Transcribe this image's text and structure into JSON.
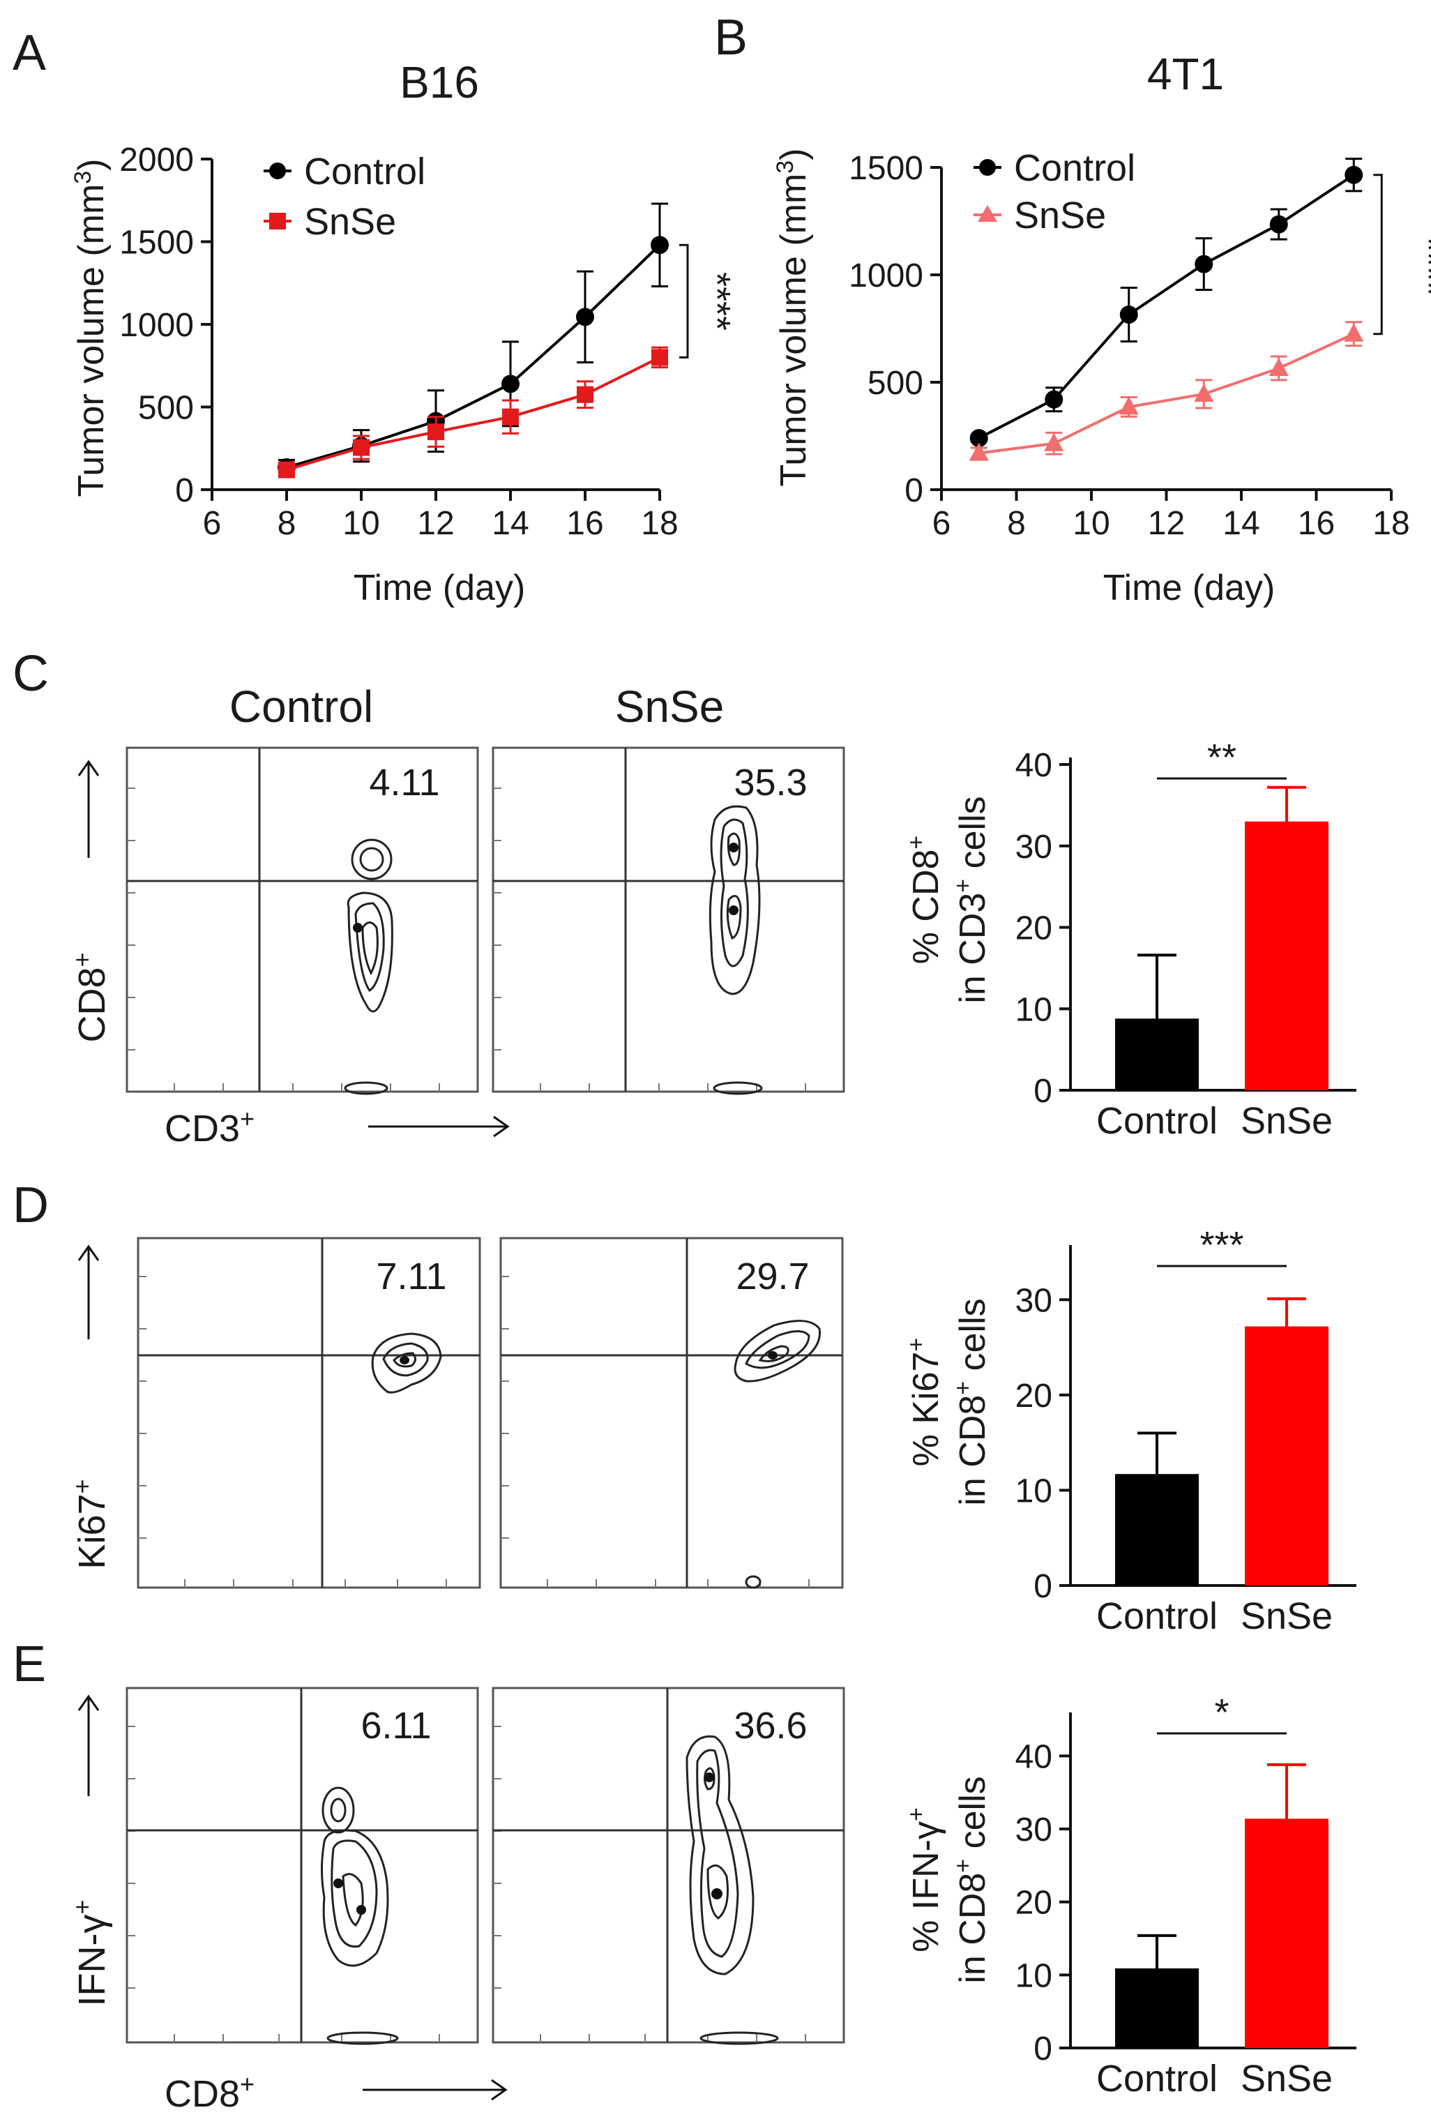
{
  "panels": {
    "A": {
      "letter": "A",
      "chart_data": {
        "type": "line",
        "title": "B16",
        "xlabel": "Time (day)",
        "ylabel": "Tumor volume (mm",
        "ylabel_sup": "3",
        "ylabel_close": ")",
        "xlim": [
          6,
          18
        ],
        "ylim": [
          0,
          2000
        ],
        "xticks": [
          6,
          8,
          10,
          12,
          14,
          16,
          18
        ],
        "yticks": [
          0,
          500,
          1000,
          1500,
          2000
        ],
        "series": [
          {
            "name": "Control",
            "color": "#000000",
            "marker": "circle",
            "x": [
              8,
              10,
              12,
              14,
              16,
              18
            ],
            "y": [
              135,
              265,
              415,
              640,
              1045,
              1480
            ],
            "err": [
              45,
              95,
              185,
              255,
              275,
              250
            ]
          },
          {
            "name": "SnSe",
            "color": "#e31a1c",
            "marker": "square",
            "x": [
              8,
              10,
              12,
              14,
              16,
              18
            ],
            "y": [
              120,
              255,
              350,
              440,
              575,
              800
            ],
            "err": [
              40,
              70,
              90,
              100,
              80,
              60
            ]
          }
        ],
        "significance": "****"
      }
    },
    "B": {
      "letter": "B",
      "chart_data": {
        "type": "line",
        "title": "4T1",
        "xlabel": "Time (day)",
        "ylabel": "Tumor volume (mm",
        "ylabel_sup": "3",
        "ylabel_close": ")",
        "xlim": [
          6,
          18
        ],
        "ylim": [
          0,
          1500
        ],
        "xticks": [
          6,
          8,
          10,
          12,
          14,
          16,
          18
        ],
        "yticks": [
          0,
          500,
          1000,
          1500
        ],
        "series": [
          {
            "name": "Control",
            "color": "#000000",
            "marker": "circle",
            "x": [
              7,
              9,
              11,
              13,
              15,
              17
            ],
            "y": [
              240,
              420,
              815,
              1050,
              1235,
              1465
            ],
            "err": [
              15,
              55,
              125,
              120,
              70,
              75
            ]
          },
          {
            "name": "SnSe",
            "color": "#f26d6d",
            "marker": "triangle",
            "x": [
              7,
              9,
              11,
              13,
              15,
              17
            ],
            "y": [
              170,
              215,
              385,
              445,
              565,
              725
            ],
            "err": [
              25,
              50,
              45,
              65,
              55,
              55
            ]
          }
        ],
        "significance": "****"
      }
    },
    "C": {
      "letter": "C",
      "flow": {
        "col_labels": [
          "Control",
          "SnSe"
        ],
        "ylabel": "CD8",
        "xlabel": "CD3",
        "sup": "+",
        "quadrant_values": [
          "4.11",
          "35.3"
        ]
      },
      "chart_data": {
        "type": "bar",
        "categories": [
          "Control",
          "SnSe"
        ],
        "values": [
          8.8,
          33.0
        ],
        "errors": [
          7.8,
          4.2
        ],
        "colors": [
          "#000000",
          "#ff0000"
        ],
        "ylabel_line1": "% CD8",
        "ylabel_line1_sup": "+",
        "ylabel_line2": "in CD3",
        "ylabel_line2_sup": "+",
        "ylabel_line2_end": " cells",
        "ylim": [
          0,
          40
        ],
        "yticks": [
          0,
          10,
          20,
          30,
          40
        ],
        "significance": "**"
      }
    },
    "D": {
      "letter": "D",
      "flow": {
        "ylabel": "Ki67",
        "sup": "+",
        "quadrant_values": [
          "7.11",
          "29.7"
        ]
      },
      "chart_data": {
        "type": "bar",
        "categories": [
          "Control",
          "SnSe"
        ],
        "values": [
          11.7,
          27.2
        ],
        "errors": [
          4.3,
          2.9
        ],
        "colors": [
          "#000000",
          "#ff0000"
        ],
        "ylabel_line1": "% Ki67",
        "ylabel_line1_sup": "+",
        "ylabel_line2": "in CD8",
        "ylabel_line2_sup": "+",
        "ylabel_line2_end": " cells",
        "ylim": [
          0,
          35
        ],
        "yticks": [
          0,
          10,
          20,
          30
        ],
        "significance": "***"
      }
    },
    "E": {
      "letter": "E",
      "flow": {
        "ylabel": "IFN-γ",
        "xlabel": "CD8",
        "sup": "+",
        "quadrant_values": [
          "6.11",
          "36.6"
        ]
      },
      "chart_data": {
        "type": "bar",
        "categories": [
          "Control",
          "SnSe"
        ],
        "values": [
          10.9,
          31.4
        ],
        "errors": [
          4.5,
          7.4
        ],
        "colors": [
          "#000000",
          "#ff0000"
        ],
        "ylabel_line1": "% IFN-γ",
        "ylabel_line1_sup": "+",
        "ylabel_line2": "in CD8",
        "ylabel_line2_sup": "+",
        "ylabel_line2_end": " cells",
        "ylim": [
          0,
          45
        ],
        "yticks": [
          0,
          10,
          20,
          30,
          40
        ],
        "significance": "*"
      }
    }
  }
}
